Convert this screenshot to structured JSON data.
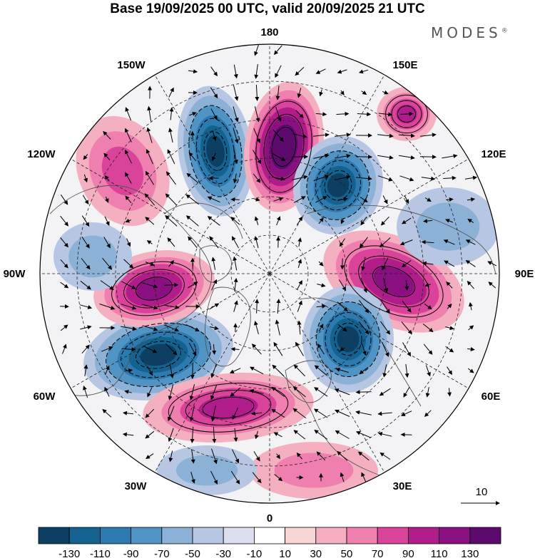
{
  "title": "Base 19/09/2025 00 UTC, valid 20/09/2025 21 UTC",
  "brand": "MODES",
  "brand_mark": "®",
  "longitude_labels": {
    "top": "180",
    "bottom": "0",
    "left": "90W",
    "right": "90E",
    "upper_left_1": "150W",
    "upper_left_2": "120W",
    "lower_left_1": "60W",
    "lower_left_2": "30W",
    "upper_right_1": "150E",
    "upper_right_2": "120E",
    "lower_right_1": "60E",
    "lower_right_2": "30E"
  },
  "vector_scale_label": "10",
  "colorbar": {
    "labels": [
      "-130",
      "-110",
      "-90",
      "-70",
      "-50",
      "-30",
      "-10",
      "10",
      "30",
      "50",
      "70",
      "90",
      "110",
      "130"
    ],
    "colors": [
      "#0d3f63",
      "#13628f",
      "#2c7ab0",
      "#4f94c4",
      "#8cb1d6",
      "#b7c6e2",
      "#dcdff0",
      "#ffffff",
      "#f9d6d6",
      "#f4b0c0",
      "#ef7fae",
      "#d9449a",
      "#b01d8a",
      "#8a0f80",
      "#5c0a6e"
    ]
  },
  "anomaly_centers": [
    {
      "sign": "negative",
      "intensity": 0.85
    },
    {
      "sign": "positive",
      "intensity": 1.0
    },
    {
      "sign": "negative",
      "intensity": 0.85
    },
    {
      "sign": "positive",
      "intensity": 0.75
    },
    {
      "sign": "negative",
      "intensity": 0.8
    },
    {
      "sign": "negative",
      "intensity": 0.85
    },
    {
      "sign": "positive",
      "intensity": 0.75
    },
    {
      "sign": "positive",
      "intensity": 0.6
    },
    {
      "sign": "positive",
      "intensity": 0.45
    },
    {
      "sign": "negative",
      "intensity": 0.35
    },
    {
      "sign": "positive",
      "intensity": 0.5
    },
    {
      "sign": "negative",
      "intensity": 0.3
    },
    {
      "sign": "positive",
      "intensity": 0.3
    },
    {
      "sign": "negative",
      "intensity": 0.3
    }
  ]
}
